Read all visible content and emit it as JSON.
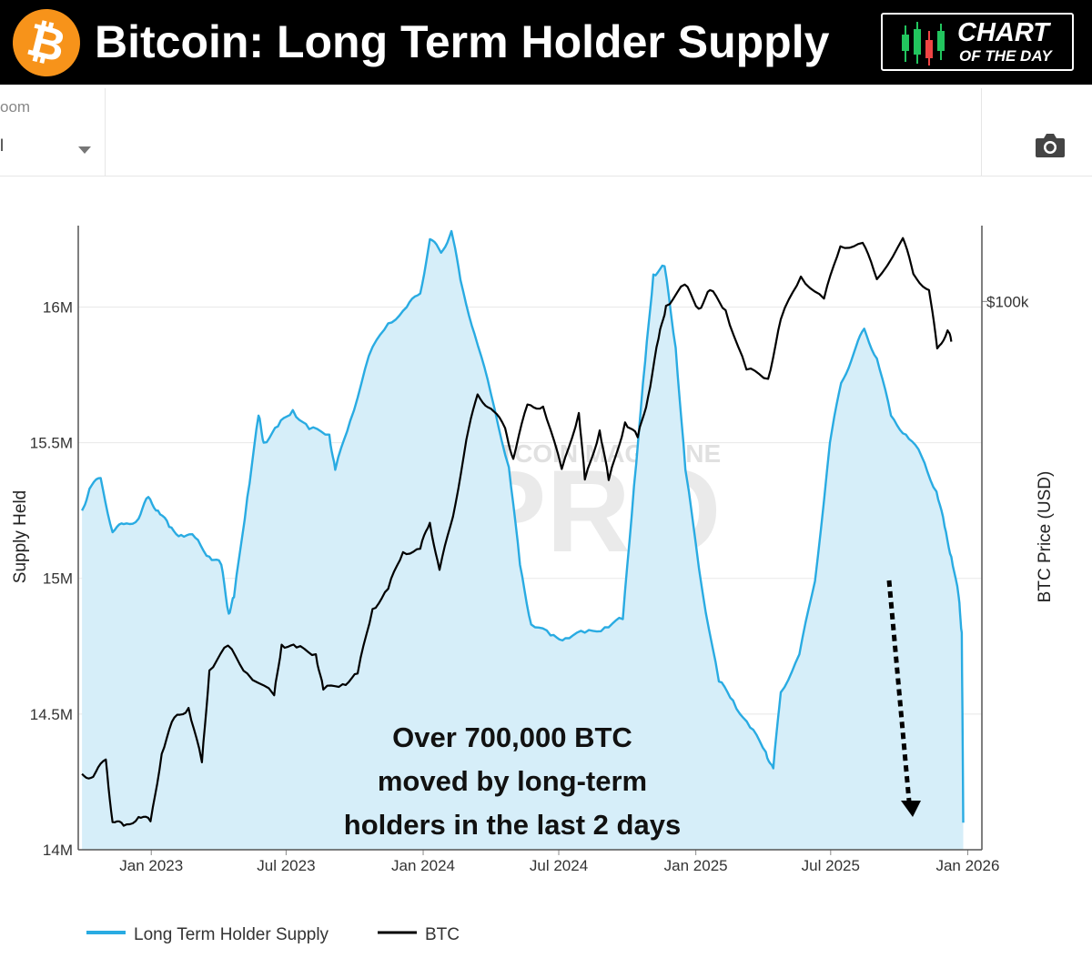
{
  "header": {
    "title": "Bitcoin: Long Term Holder Supply",
    "logo_glyph": "₿",
    "logo_icon": "bitcoin-logo-icon",
    "badge_line1": "CHART",
    "badge_line2": "OF THE DAY",
    "badge_icon": "candlestick-icon"
  },
  "toolbar": {
    "zoom_label": "oom",
    "zoom_value": "l",
    "dropdown_icon": "caret-down-icon",
    "camera_icon": "camera-icon"
  },
  "colors": {
    "supply": "#29abe2",
    "supply_fill": "#d6eef9",
    "btc": "#000000",
    "header_bg": "#000000",
    "logo": "#f7931a"
  },
  "chart_data": {
    "type": "area",
    "title": "",
    "xlabel": "",
    "ylabel": "Supply Held",
    "y2label": "BTC Price (USD)",
    "x_ticks": [
      "Jan 2023",
      "Jul 2023",
      "Jan 2024",
      "Jul 2024",
      "Jan 2025",
      "Jul 2025",
      "Jan 2026"
    ],
    "y_ticks": [
      "14M",
      "14.5M",
      "15M",
      "15.5M",
      "16M"
    ],
    "y2_ticks": [
      "$100k"
    ],
    "ylim": [
      14000000,
      16300000
    ],
    "y2_scale": "log",
    "y2lim": [
      15000,
      130000
    ],
    "grid": true,
    "legend_position": "bottom-left",
    "watermark": [
      "BITCOIN MAGAZINE",
      "PRO"
    ],
    "annotation": [
      "Over 700,000 BTC",
      "moved by long-term",
      "holders in the last 2 days"
    ],
    "series": [
      {
        "name": "Long Term Holder Supply",
        "axis": "left",
        "points": [
          [
            "2022-09-30",
            15250000
          ],
          [
            "2022-10-10",
            15330000
          ],
          [
            "2022-10-25",
            15370000
          ],
          [
            "2022-11-10",
            15170000
          ],
          [
            "2022-11-25",
            15200000
          ],
          [
            "2022-12-15",
            15220000
          ],
          [
            "2022-12-28",
            15300000
          ],
          [
            "2023-01-10",
            15250000
          ],
          [
            "2023-01-25",
            15190000
          ],
          [
            "2023-02-10",
            15160000
          ],
          [
            "2023-03-01",
            15150000
          ],
          [
            "2023-03-20",
            15080000
          ],
          [
            "2023-04-05",
            15050000
          ],
          [
            "2023-04-15",
            14870000
          ],
          [
            "2023-04-22",
            14930000
          ],
          [
            "2023-05-10",
            15300000
          ],
          [
            "2023-05-25",
            15600000
          ],
          [
            "2023-06-01",
            15500000
          ],
          [
            "2023-06-20",
            15560000
          ],
          [
            "2023-07-10",
            15620000
          ],
          [
            "2023-08-01",
            15550000
          ],
          [
            "2023-08-28",
            15530000
          ],
          [
            "2023-09-05",
            15400000
          ],
          [
            "2023-09-25",
            15580000
          ],
          [
            "2023-10-20",
            15820000
          ],
          [
            "2023-11-15",
            15940000
          ],
          [
            "2023-12-10",
            16000000
          ],
          [
            "2023-12-28",
            16050000
          ],
          [
            "2024-01-10",
            16250000
          ],
          [
            "2024-01-25",
            16200000
          ],
          [
            "2024-02-08",
            16280000
          ],
          [
            "2024-02-20",
            16100000
          ],
          [
            "2024-03-10",
            15900000
          ],
          [
            "2024-04-01",
            15680000
          ],
          [
            "2024-04-25",
            15410000
          ],
          [
            "2024-05-10",
            15050000
          ],
          [
            "2024-05-25",
            14830000
          ],
          [
            "2024-06-20",
            14790000
          ],
          [
            "2024-07-10",
            14780000
          ],
          [
            "2024-08-05",
            14800000
          ],
          [
            "2024-09-01",
            14820000
          ],
          [
            "2024-09-25",
            14850000
          ],
          [
            "2024-10-10",
            15340000
          ],
          [
            "2024-10-25",
            15800000
          ],
          [
            "2024-11-05",
            16120000
          ],
          [
            "2024-11-20",
            16150000
          ],
          [
            "2024-12-05",
            15850000
          ],
          [
            "2024-12-18",
            15400000
          ],
          [
            "2025-01-10",
            14950000
          ],
          [
            "2025-02-01",
            14620000
          ],
          [
            "2025-02-20",
            14550000
          ],
          [
            "2025-03-15",
            14450000
          ],
          [
            "2025-04-05",
            14360000
          ],
          [
            "2025-04-15",
            14300000
          ],
          [
            "2025-04-25",
            14580000
          ],
          [
            "2025-05-20",
            14720000
          ],
          [
            "2025-06-10",
            14990000
          ],
          [
            "2025-06-30",
            15500000
          ],
          [
            "2025-07-15",
            15720000
          ],
          [
            "2025-08-01",
            15830000
          ],
          [
            "2025-08-15",
            15920000
          ],
          [
            "2025-09-01",
            15810000
          ],
          [
            "2025-09-20",
            15600000
          ],
          [
            "2025-10-10",
            15530000
          ],
          [
            "2025-10-31",
            15450000
          ],
          [
            "2025-11-20",
            15320000
          ],
          [
            "2025-12-01",
            15190000
          ],
          [
            "2025-12-10",
            15080000
          ],
          [
            "2025-12-20",
            14930000
          ],
          [
            "2025-12-24",
            14800000
          ],
          [
            "2025-12-26",
            14100000
          ]
        ]
      },
      {
        "name": "BTC",
        "axis": "right",
        "points": [
          [
            "2022-09-30",
            19500
          ],
          [
            "2022-10-15",
            19300
          ],
          [
            "2022-11-01",
            20500
          ],
          [
            "2022-11-10",
            16500
          ],
          [
            "2022-11-25",
            16300
          ],
          [
            "2022-12-15",
            16800
          ],
          [
            "2022-12-31",
            16550
          ],
          [
            "2023-01-15",
            20900
          ],
          [
            "2023-02-01",
            23700
          ],
          [
            "2023-02-20",
            24500
          ],
          [
            "2023-03-10",
            20300
          ],
          [
            "2023-03-20",
            27900
          ],
          [
            "2023-04-14",
            30400
          ],
          [
            "2023-05-10",
            27600
          ],
          [
            "2023-06-15",
            25600
          ],
          [
            "2023-06-25",
            30500
          ],
          [
            "2023-07-15",
            30200
          ],
          [
            "2023-08-10",
            29500
          ],
          [
            "2023-08-20",
            26100
          ],
          [
            "2023-09-15",
            26600
          ],
          [
            "2023-10-05",
            27600
          ],
          [
            "2023-10-25",
            34500
          ],
          [
            "2023-11-15",
            37000
          ],
          [
            "2023-12-05",
            42000
          ],
          [
            "2023-12-28",
            42500
          ],
          [
            "2024-01-10",
            46500
          ],
          [
            "2024-01-23",
            39500
          ],
          [
            "2024-02-10",
            47500
          ],
          [
            "2024-02-28",
            62000
          ],
          [
            "2024-03-14",
            72500
          ],
          [
            "2024-04-01",
            69000
          ],
          [
            "2024-04-20",
            64500
          ],
          [
            "2024-05-01",
            58000
          ],
          [
            "2024-05-20",
            70000
          ],
          [
            "2024-06-10",
            69500
          ],
          [
            "2024-07-05",
            56000
          ],
          [
            "2024-07-28",
            68000
          ],
          [
            "2024-08-05",
            54000
          ],
          [
            "2024-08-25",
            64000
          ],
          [
            "2024-09-06",
            53900
          ],
          [
            "2024-09-28",
            65800
          ],
          [
            "2024-10-15",
            62500
          ],
          [
            "2024-10-29",
            72000
          ],
          [
            "2024-11-12",
            88000
          ],
          [
            "2024-11-22",
            98500
          ],
          [
            "2024-12-17",
            106000
          ],
          [
            "2025-01-05",
            97500
          ],
          [
            "2025-01-20",
            104000
          ],
          [
            "2025-02-10",
            97000
          ],
          [
            "2025-03-10",
            79000
          ],
          [
            "2025-04-08",
            76500
          ],
          [
            "2025-04-25",
            94000
          ],
          [
            "2025-05-22",
            109000
          ],
          [
            "2025-06-22",
            101000
          ],
          [
            "2025-07-14",
            121000
          ],
          [
            "2025-08-13",
            122500
          ],
          [
            "2025-09-01",
            108000
          ],
          [
            "2025-10-06",
            124500
          ],
          [
            "2025-10-20",
            110000
          ],
          [
            "2025-11-10",
            104000
          ],
          [
            "2025-11-21",
            85000
          ],
          [
            "2025-12-05",
            90500
          ],
          [
            "2025-12-10",
            87000
          ]
        ]
      }
    ]
  },
  "legend": {
    "supply_label": "Long Term Holder Supply",
    "btc_label": "BTC"
  }
}
